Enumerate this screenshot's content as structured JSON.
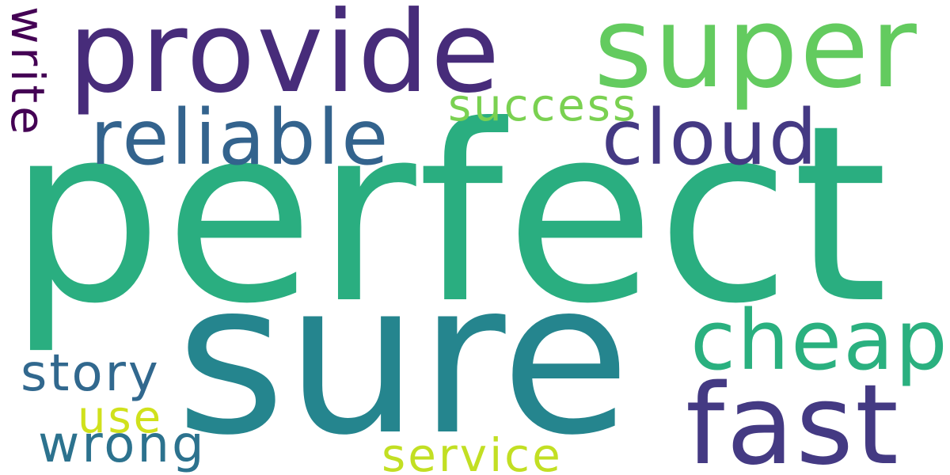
{
  "words": {
    "perfect": {
      "text": "perfect",
      "color": "#2aae80"
    },
    "sure": {
      "text": "sure",
      "color": "#25858e"
    },
    "provide": {
      "text": "provide",
      "color": "#472c7a"
    },
    "super": {
      "text": "super",
      "color": "#63cb5f"
    },
    "fast": {
      "text": "fast",
      "color": "#443a83"
    },
    "cheap": {
      "text": "cheap",
      "color": "#2ab07f"
    },
    "reliable": {
      "text": "reliable",
      "color": "#33638d"
    },
    "cloud": {
      "text": "cloud",
      "color": "#443983"
    },
    "success": {
      "text": "success",
      "color": "#7ad151"
    },
    "story": {
      "text": "story",
      "color": "#31688e"
    },
    "use": {
      "text": "use",
      "color": "#d0e11c"
    },
    "wrong": {
      "text": "wrong",
      "color": "#2c728e"
    },
    "service": {
      "text": "service",
      "color": "#c2df23"
    },
    "write": {
      "text": "write",
      "color": "#440154"
    }
  }
}
